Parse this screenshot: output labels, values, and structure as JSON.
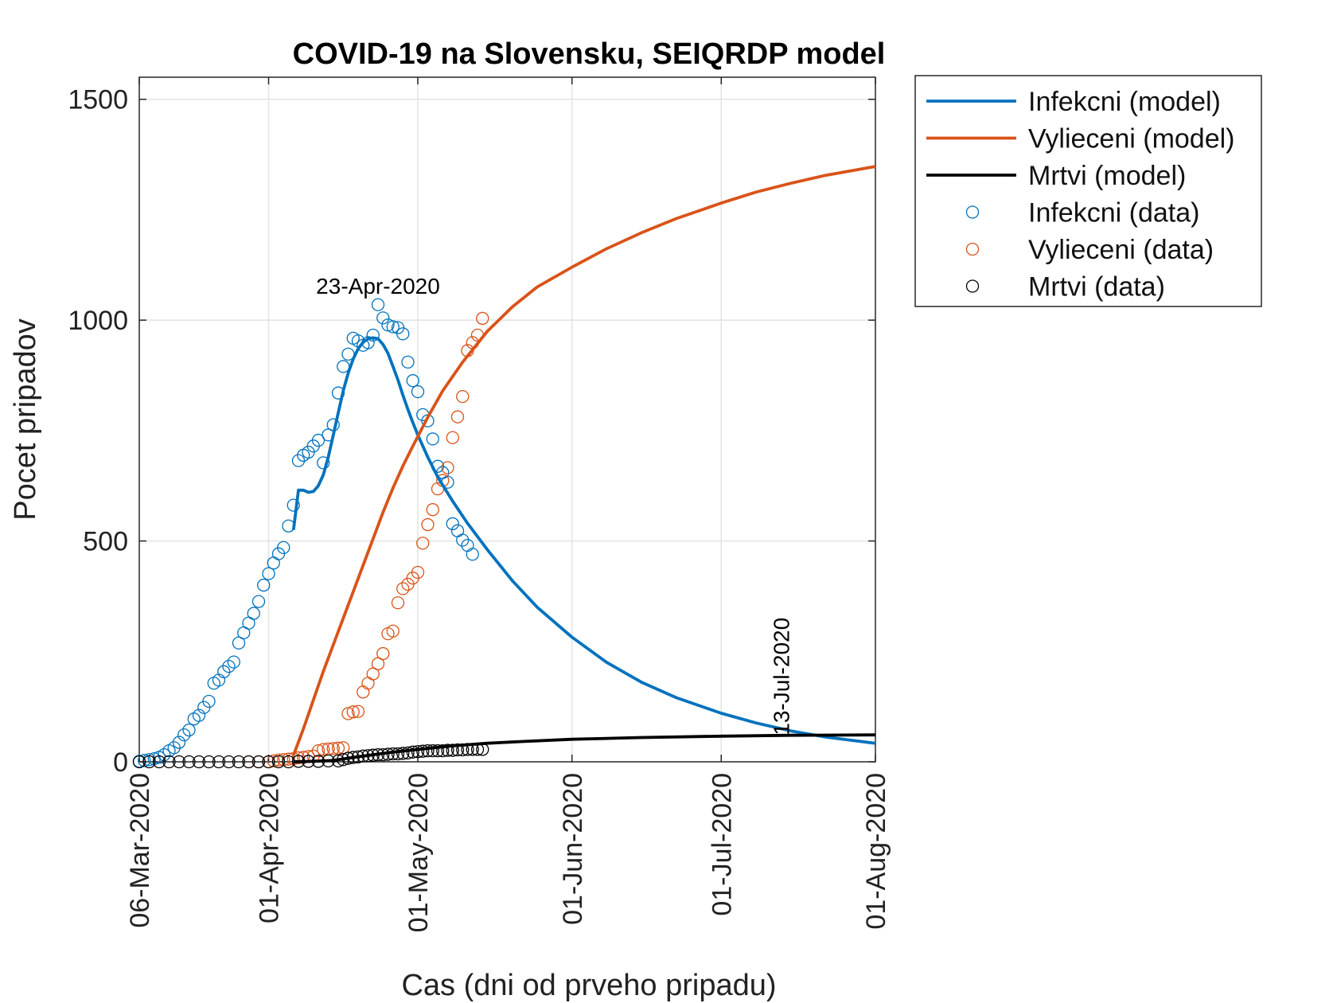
{
  "chart_data": {
    "type": "line",
    "title": "COVID-19 na Slovensku, SEIQRDP model",
    "xlabel": "Cas (dni od prveho pripadu)",
    "ylabel": "Pocet pripadov",
    "xlim": [
      "2020-03-06",
      "2020-08-01"
    ],
    "ylim": [
      0,
      1550
    ],
    "grid": true,
    "x_ticks": [
      {
        "date": "2020-03-06",
        "label": "06-Mar-2020"
      },
      {
        "date": "2020-04-01",
        "label": "01-Apr-2020"
      },
      {
        "date": "2020-05-01",
        "label": "01-May-2020"
      },
      {
        "date": "2020-06-01",
        "label": "01-Jun-2020"
      },
      {
        "date": "2020-07-01",
        "label": "01-Jul-2020"
      },
      {
        "date": "2020-08-01",
        "label": "01-Aug-2020"
      }
    ],
    "y_ticks": [
      {
        "value": 0,
        "label": "0"
      },
      {
        "value": 500,
        "label": "500"
      },
      {
        "value": 1000,
        "label": "1000"
      },
      {
        "value": 1500,
        "label": "1500"
      }
    ],
    "legend_position": "outside-top-right",
    "series": [
      {
        "name": "Infekcni (model)",
        "kind": "line",
        "color": "#0072BD",
        "points": [
          [
            "2020-04-06",
            525
          ],
          [
            "2020-04-07",
            615
          ],
          [
            "2020-04-08",
            615
          ],
          [
            "2020-04-09",
            610
          ],
          [
            "2020-04-10",
            612
          ],
          [
            "2020-04-11",
            625
          ],
          [
            "2020-04-12",
            650
          ],
          [
            "2020-04-13",
            690
          ],
          [
            "2020-04-14",
            740
          ],
          [
            "2020-04-15",
            790
          ],
          [
            "2020-04-16",
            840
          ],
          [
            "2020-04-17",
            880
          ],
          [
            "2020-04-18",
            912
          ],
          [
            "2020-04-19",
            935
          ],
          [
            "2020-04-20",
            950
          ],
          [
            "2020-04-21",
            958
          ],
          [
            "2020-04-22",
            960
          ],
          [
            "2020-04-23",
            958
          ],
          [
            "2020-04-24",
            945
          ],
          [
            "2020-04-25",
            925
          ],
          [
            "2020-04-26",
            895
          ],
          [
            "2020-04-27",
            865
          ],
          [
            "2020-04-28",
            830
          ],
          [
            "2020-04-29",
            798
          ],
          [
            "2020-04-30",
            768
          ],
          [
            "2020-05-01",
            740
          ],
          [
            "2020-05-03",
            690
          ],
          [
            "2020-05-05",
            645
          ],
          [
            "2020-05-08",
            590
          ],
          [
            "2020-05-11",
            540
          ],
          [
            "2020-05-15",
            480
          ],
          [
            "2020-05-20",
            410
          ],
          [
            "2020-05-25",
            350
          ],
          [
            "2020-06-01",
            282
          ],
          [
            "2020-06-08",
            225
          ],
          [
            "2020-06-15",
            180
          ],
          [
            "2020-06-22",
            145
          ],
          [
            "2020-07-01",
            110
          ],
          [
            "2020-07-08",
            88
          ],
          [
            "2020-07-15",
            70
          ],
          [
            "2020-07-22",
            56
          ],
          [
            "2020-08-01",
            42
          ]
        ]
      },
      {
        "name": "Vylieceni (model)",
        "kind": "line",
        "color": "#D95319",
        "points": [
          [
            "2020-04-06",
            15
          ],
          [
            "2020-04-08",
            75
          ],
          [
            "2020-04-10",
            140
          ],
          [
            "2020-04-12",
            205
          ],
          [
            "2020-04-14",
            265
          ],
          [
            "2020-04-16",
            325
          ],
          [
            "2020-04-18",
            385
          ],
          [
            "2020-04-20",
            445
          ],
          [
            "2020-04-22",
            505
          ],
          [
            "2020-04-24",
            565
          ],
          [
            "2020-04-26",
            620
          ],
          [
            "2020-04-28",
            670
          ],
          [
            "2020-04-30",
            715
          ],
          [
            "2020-05-03",
            780
          ],
          [
            "2020-05-06",
            840
          ],
          [
            "2020-05-10",
            905
          ],
          [
            "2020-05-15",
            975
          ],
          [
            "2020-05-20",
            1030
          ],
          [
            "2020-05-25",
            1075
          ],
          [
            "2020-06-01",
            1120
          ],
          [
            "2020-06-08",
            1162
          ],
          [
            "2020-06-15",
            1198
          ],
          [
            "2020-06-22",
            1230
          ],
          [
            "2020-07-01",
            1265
          ],
          [
            "2020-07-08",
            1290
          ],
          [
            "2020-07-15",
            1310
          ],
          [
            "2020-07-22",
            1328
          ],
          [
            "2020-08-01",
            1348
          ]
        ]
      },
      {
        "name": "Mrtvi (model)",
        "kind": "line",
        "color": "#000000",
        "points": [
          [
            "2020-04-06",
            0
          ],
          [
            "2020-04-10",
            1
          ],
          [
            "2020-04-14",
            3
          ],
          [
            "2020-04-18",
            10
          ],
          [
            "2020-04-22",
            16
          ],
          [
            "2020-04-26",
            22
          ],
          [
            "2020-05-01",
            28
          ],
          [
            "2020-05-08",
            36
          ],
          [
            "2020-05-15",
            42
          ],
          [
            "2020-05-22",
            46
          ],
          [
            "2020-06-01",
            51
          ],
          [
            "2020-06-15",
            55
          ],
          [
            "2020-07-01",
            58
          ],
          [
            "2020-07-15",
            60
          ],
          [
            "2020-08-01",
            61
          ]
        ]
      },
      {
        "name": "Infekcni (data)",
        "kind": "marker",
        "color": "#0072BD",
        "points": [
          [
            "2020-03-06",
            1
          ],
          [
            "2020-03-07",
            3
          ],
          [
            "2020-03-08",
            5
          ],
          [
            "2020-03-09",
            7
          ],
          [
            "2020-03-10",
            10
          ],
          [
            "2020-03-11",
            16
          ],
          [
            "2020-03-12",
            25
          ],
          [
            "2020-03-13",
            32
          ],
          [
            "2020-03-14",
            44
          ],
          [
            "2020-03-15",
            61
          ],
          [
            "2020-03-16",
            72
          ],
          [
            "2020-03-17",
            97
          ],
          [
            "2020-03-18",
            105
          ],
          [
            "2020-03-19",
            123
          ],
          [
            "2020-03-20",
            137
          ],
          [
            "2020-03-21",
            178
          ],
          [
            "2020-03-22",
            185
          ],
          [
            "2020-03-23",
            204
          ],
          [
            "2020-03-24",
            216
          ],
          [
            "2020-03-25",
            226
          ],
          [
            "2020-03-26",
            269
          ],
          [
            "2020-03-27",
            292
          ],
          [
            "2020-03-28",
            314
          ],
          [
            "2020-03-29",
            336
          ],
          [
            "2020-03-30",
            363
          ],
          [
            "2020-03-31",
            400
          ],
          [
            "2020-04-01",
            426
          ],
          [
            "2020-04-02",
            450
          ],
          [
            "2020-04-03",
            471
          ],
          [
            "2020-04-04",
            485
          ],
          [
            "2020-04-05",
            534
          ],
          [
            "2020-04-06",
            581
          ],
          [
            "2020-04-07",
            682
          ],
          [
            "2020-04-08",
            694
          ],
          [
            "2020-04-09",
            701
          ],
          [
            "2020-04-10",
            715
          ],
          [
            "2020-04-11",
            728
          ],
          [
            "2020-04-12",
            677
          ],
          [
            "2020-04-13",
            740
          ],
          [
            "2020-04-14",
            763
          ],
          [
            "2020-04-15",
            835
          ],
          [
            "2020-04-16",
            895
          ],
          [
            "2020-04-17",
            923
          ],
          [
            "2020-04-18",
            959
          ],
          [
            "2020-04-19",
            953
          ],
          [
            "2020-04-20",
            943
          ],
          [
            "2020-04-21",
            949
          ],
          [
            "2020-04-22",
            966
          ],
          [
            "2020-04-23",
            1035
          ],
          [
            "2020-04-24",
            1005
          ],
          [
            "2020-04-25",
            989
          ],
          [
            "2020-04-26",
            985
          ],
          [
            "2020-04-27",
            983
          ],
          [
            "2020-04-28",
            969
          ],
          [
            "2020-04-29",
            905
          ],
          [
            "2020-04-30",
            863
          ],
          [
            "2020-05-01",
            838
          ],
          [
            "2020-05-02",
            786
          ],
          [
            "2020-05-03",
            772
          ],
          [
            "2020-05-04",
            731
          ],
          [
            "2020-05-05",
            669
          ],
          [
            "2020-05-06",
            655
          ],
          [
            "2020-05-07",
            633
          ],
          [
            "2020-05-08",
            539
          ],
          [
            "2020-05-09",
            523
          ],
          [
            "2020-05-10",
            502
          ],
          [
            "2020-05-11",
            490
          ],
          [
            "2020-05-12",
            470
          ]
        ]
      },
      {
        "name": "Vylieceni (data)",
        "kind": "marker",
        "color": "#D95319",
        "points": [
          [
            "2020-03-28",
            0
          ],
          [
            "2020-03-30",
            0
          ],
          [
            "2020-04-01",
            0
          ],
          [
            "2020-04-02",
            2
          ],
          [
            "2020-04-03",
            4
          ],
          [
            "2020-04-04",
            5
          ],
          [
            "2020-04-05",
            6
          ],
          [
            "2020-04-06",
            7
          ],
          [
            "2020-04-07",
            9
          ],
          [
            "2020-04-08",
            10
          ],
          [
            "2020-04-09",
            12
          ],
          [
            "2020-04-10",
            13
          ],
          [
            "2020-04-11",
            25
          ],
          [
            "2020-04-12",
            28
          ],
          [
            "2020-04-13",
            29
          ],
          [
            "2020-04-14",
            30
          ],
          [
            "2020-04-15",
            31
          ],
          [
            "2020-04-16",
            32
          ],
          [
            "2020-04-17",
            109
          ],
          [
            "2020-04-18",
            113
          ],
          [
            "2020-04-19",
            114
          ],
          [
            "2020-04-20",
            158
          ],
          [
            "2020-04-21",
            178
          ],
          [
            "2020-04-22",
            199
          ],
          [
            "2020-04-23",
            222
          ],
          [
            "2020-04-24",
            245
          ],
          [
            "2020-04-25",
            290
          ],
          [
            "2020-04-26",
            296
          ],
          [
            "2020-04-27",
            360
          ],
          [
            "2020-04-28",
            392
          ],
          [
            "2020-04-29",
            402
          ],
          [
            "2020-04-30",
            416
          ],
          [
            "2020-05-01",
            429
          ],
          [
            "2020-05-02",
            495
          ],
          [
            "2020-05-03",
            537
          ],
          [
            "2020-05-04",
            571
          ],
          [
            "2020-05-05",
            618
          ],
          [
            "2020-05-06",
            637
          ],
          [
            "2020-05-07",
            666
          ],
          [
            "2020-05-08",
            734
          ],
          [
            "2020-05-09",
            781
          ],
          [
            "2020-05-10",
            827
          ],
          [
            "2020-05-11",
            931
          ],
          [
            "2020-05-12",
            949
          ],
          [
            "2020-05-13",
            966
          ],
          [
            "2020-05-14",
            1004
          ]
        ]
      },
      {
        "name": "Mrtvi (data)",
        "kind": "marker",
        "color": "#000000",
        "points": [
          [
            "2020-03-06",
            0
          ],
          [
            "2020-03-08",
            0
          ],
          [
            "2020-03-10",
            0
          ],
          [
            "2020-03-12",
            0
          ],
          [
            "2020-03-14",
            0
          ],
          [
            "2020-03-16",
            0
          ],
          [
            "2020-03-18",
            0
          ],
          [
            "2020-03-20",
            0
          ],
          [
            "2020-03-22",
            0
          ],
          [
            "2020-03-24",
            0
          ],
          [
            "2020-03-26",
            0
          ],
          [
            "2020-03-28",
            0
          ],
          [
            "2020-03-30",
            0
          ],
          [
            "2020-04-01",
            0
          ],
          [
            "2020-04-03",
            0
          ],
          [
            "2020-04-05",
            0
          ],
          [
            "2020-04-07",
            1
          ],
          [
            "2020-04-09",
            1
          ],
          [
            "2020-04-11",
            1
          ],
          [
            "2020-04-13",
            2
          ],
          [
            "2020-04-15",
            2
          ],
          [
            "2020-04-16",
            5
          ],
          [
            "2020-04-17",
            8
          ],
          [
            "2020-04-18",
            10
          ],
          [
            "2020-04-19",
            11
          ],
          [
            "2020-04-20",
            13
          ],
          [
            "2020-04-21",
            14
          ],
          [
            "2020-04-22",
            15
          ],
          [
            "2020-04-23",
            16
          ],
          [
            "2020-04-24",
            16
          ],
          [
            "2020-04-25",
            17
          ],
          [
            "2020-04-26",
            18
          ],
          [
            "2020-04-27",
            18
          ],
          [
            "2020-04-28",
            19
          ],
          [
            "2020-04-29",
            20
          ],
          [
            "2020-04-30",
            22
          ],
          [
            "2020-05-01",
            23
          ],
          [
            "2020-05-02",
            24
          ],
          [
            "2020-05-03",
            25
          ],
          [
            "2020-05-04",
            25
          ],
          [
            "2020-05-05",
            25
          ],
          [
            "2020-05-06",
            25
          ],
          [
            "2020-05-07",
            26
          ],
          [
            "2020-05-08",
            26
          ],
          [
            "2020-05-09",
            27
          ],
          [
            "2020-05-10",
            27
          ],
          [
            "2020-05-11",
            28
          ],
          [
            "2020-05-12",
            28
          ],
          [
            "2020-05-13",
            28
          ],
          [
            "2020-05-14",
            28
          ]
        ]
      }
    ],
    "annotations": [
      {
        "text": "23-Apr-2020",
        "date": "2020-04-23",
        "value": 1060,
        "orientation": "horizontal"
      },
      {
        "text": "13-Jul-2020",
        "date": "2020-07-13",
        "value": 60,
        "orientation": "vertical"
      }
    ]
  }
}
